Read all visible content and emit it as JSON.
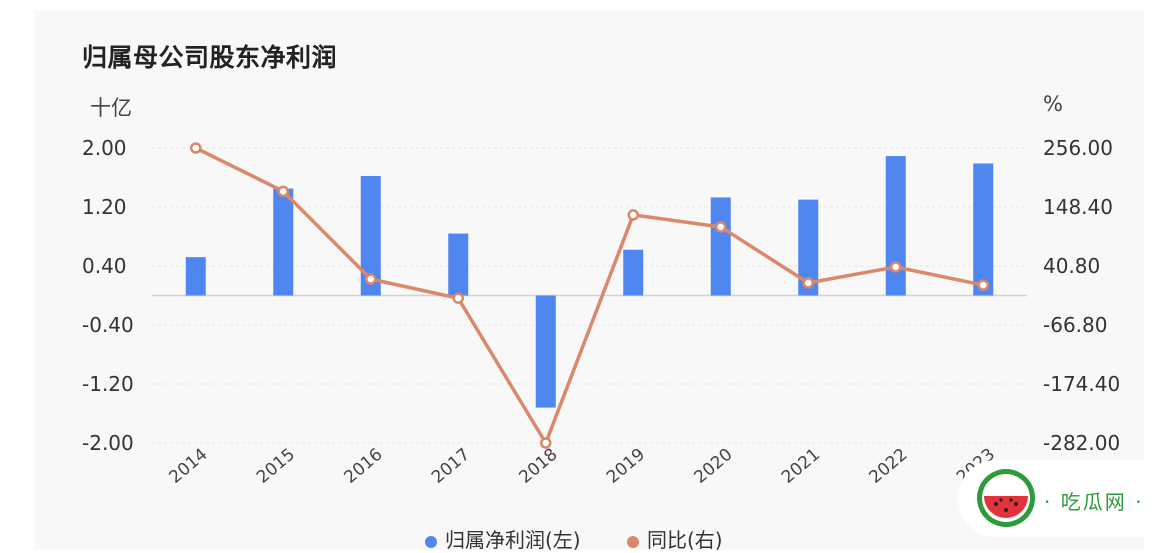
{
  "title": "归属母公司股东净利润",
  "left_unit": "十亿",
  "right_unit": "%",
  "legend": [
    "归属净利润(左)",
    "同比(右)"
  ],
  "watermark": "· 吃瓜网 ·",
  "colors": {
    "bar": "#4f86f0",
    "line": "#d9886a",
    "card": "#f8f8f9",
    "watermark": "#2f9a3c"
  },
  "chart_data": {
    "type": "bar",
    "categories": [
      "2014",
      "2015",
      "2016",
      "2017",
      "2018",
      "2019",
      "2020",
      "2021",
      "2022",
      "2023"
    ],
    "series": [
      {
        "name": "归属净利润(左)",
        "type": "bar",
        "axis": "left",
        "values": [
          0.52,
          1.45,
          1.62,
          0.84,
          -1.52,
          0.62,
          1.33,
          1.3,
          1.89,
          1.79
        ]
      },
      {
        "name": "同比(右)",
        "type": "line",
        "axis": "right",
        "values": [
          256,
          177,
          17,
          -18,
          -282,
          134,
          112,
          10,
          39,
          6
        ]
      }
    ],
    "y_left": {
      "ticks": [
        "2.00",
        "1.20",
        "0.40",
        "-0.40",
        "-1.20",
        "-2.00"
      ],
      "ylim": [
        -2.0,
        2.0
      ]
    },
    "y_right": {
      "ticks": [
        "256.00",
        "148.40",
        "40.80",
        "-66.80",
        "-174.40",
        "-282.00"
      ],
      "ylim": [
        -282.0,
        256.0
      ]
    },
    "grid": true
  }
}
